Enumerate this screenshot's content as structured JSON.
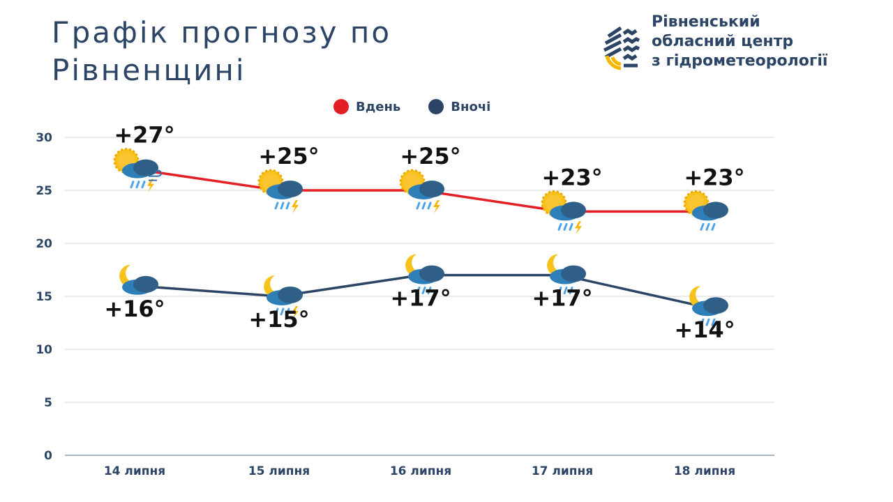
{
  "title_lines": [
    "Графік прогнозу по",
    "Рівненщині"
  ],
  "logo": {
    "lines": [
      "Рівненський",
      "обласний центр",
      "з гідрометеорології"
    ]
  },
  "chart_data": {
    "type": "line",
    "title": "Графік прогнозу по Рівненщині",
    "categories": [
      "14 липня",
      "15 липня",
      "16 липня",
      "17 липня",
      "18 липня"
    ],
    "ylim": [
      0,
      30
    ],
    "yticks": [
      0,
      5,
      10,
      15,
      20,
      25,
      30
    ],
    "grid": true,
    "legend_position": "top",
    "series": [
      {
        "name": "Вдень",
        "color": "#e31e24",
        "values": [
          27,
          25,
          25,
          23,
          23
        ],
        "labels": [
          "+27°",
          "+25°",
          "+25°",
          "+23°",
          "+23°"
        ],
        "icons": [
          "sun-cloud-thunder-rain-wind",
          "sun-cloud-rain-thunder",
          "sun-cloud-rain-thunder",
          "sun-cloud-rain-thunder",
          "sun-cloud-rain"
        ]
      },
      {
        "name": "Вночі",
        "color": "#2c4466",
        "values": [
          16,
          15,
          17,
          17,
          14
        ],
        "labels": [
          "+16°",
          "+15°",
          "+17°",
          "+17°",
          "+14°"
        ],
        "icons": [
          "moon-cloud",
          "moon-cloud-rain-thunder",
          "moon-cloud-rain",
          "moon-cloud-rain",
          "moon-cloud-rain"
        ]
      }
    ]
  }
}
